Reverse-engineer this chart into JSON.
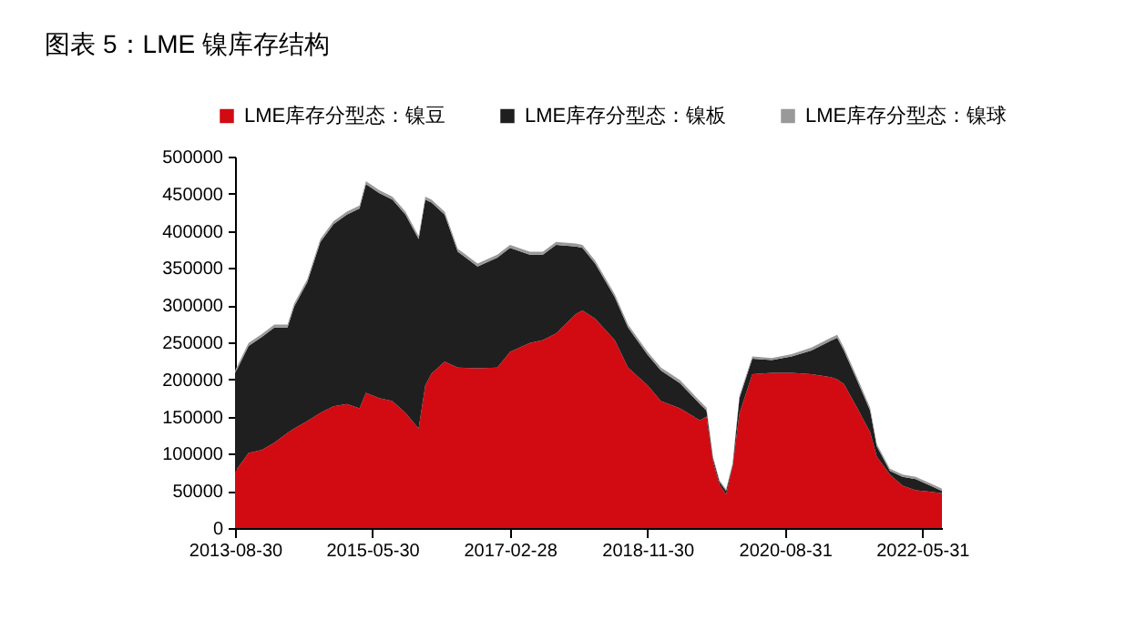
{
  "chart_data": {
    "type": "area",
    "stacked": true,
    "title": "图表 5：LME 镍库存结构",
    "x": [
      "2013-08-30",
      "2013-11-01",
      "2014-01-01",
      "2014-03-01",
      "2014-05-01",
      "2014-06-01",
      "2014-08-01",
      "2014-10-01",
      "2014-12-01",
      "2015-02-01",
      "2015-04-01",
      "2015-05-01",
      "2015-07-01",
      "2015-09-01",
      "2015-11-01",
      "2016-01-01",
      "2016-02-01",
      "2016-03-01",
      "2016-05-01",
      "2016-07-01",
      "2016-10-01",
      "2017-01-01",
      "2017-03-01",
      "2017-06-01",
      "2017-08-01",
      "2017-10-01",
      "2018-01-01",
      "2018-02-01",
      "2018-04-01",
      "2018-07-01",
      "2018-09-01",
      "2018-12-01",
      "2019-02-01",
      "2019-05-01",
      "2019-08-01",
      "2019-09-01",
      "2019-10-01",
      "2019-11-01",
      "2019-12-01",
      "2020-01-01",
      "2020-02-01",
      "2020-04-01",
      "2020-07-01",
      "2020-10-01",
      "2021-01-01",
      "2021-04-01",
      "2021-05-01",
      "2021-06-01",
      "2021-08-01",
      "2021-10-01",
      "2021-11-01",
      "2022-01-01",
      "2022-03-01",
      "2022-05-01",
      "2022-08-31"
    ],
    "series": [
      {
        "name": "LME库存分型态：镍豆",
        "color": "#d20b12",
        "values": [
          76000,
          101000,
          105000,
          115000,
          128000,
          134000,
          144000,
          155000,
          164000,
          167000,
          161000,
          182000,
          175000,
          171000,
          155000,
          134000,
          192000,
          208000,
          224000,
          216000,
          215000,
          216000,
          237000,
          249000,
          253000,
          262000,
          288000,
          293000,
          282000,
          253000,
          216000,
          192000,
          171000,
          161000,
          145000,
          150000,
          90000,
          58000,
          45000,
          84000,
          154000,
          207000,
          209000,
          209000,
          207000,
          203000,
          200000,
          194000,
          162000,
          129000,
          96000,
          72000,
          57000,
          51000,
          47000
        ]
      },
      {
        "name": "LME库存分型态：镍板",
        "color": "#1f1f1f",
        "values": [
          132000,
          144000,
          152000,
          155000,
          142000,
          164000,
          187000,
          230000,
          245000,
          255000,
          269000,
          281000,
          276000,
          271000,
          267000,
          255000,
          250000,
          230000,
          198000,
          156000,
          137000,
          148000,
          140000,
          119000,
          115000,
          119000,
          91000,
          84000,
          74000,
          58000,
          54000,
          41000,
          41000,
          34000,
          22000,
          8000,
          4000,
          4000,
          5000,
          2000,
          21000,
          21000,
          17000,
          22000,
          32000,
          49000,
          56000,
          45000,
          37000,
          29000,
          14000,
          5000,
          12000,
          15000,
          3000
        ]
      },
      {
        "name": "LME库存分型态：镍球",
        "color": "#999999",
        "values": [
          4000,
          4000,
          4000,
          4000,
          4000,
          4000,
          4000,
          4000,
          4000,
          4000,
          4000,
          4000,
          4000,
          4000,
          4000,
          4000,
          4000,
          4000,
          4000,
          4000,
          4000,
          4000,
          4000,
          4000,
          4000,
          4000,
          4000,
          4000,
          4000,
          4000,
          4000,
          4000,
          4000,
          4000,
          4000,
          4000,
          2000,
          2000,
          2000,
          2000,
          3000,
          3000,
          3000,
          3000,
          4000,
          4000,
          4000,
          4000,
          4000,
          4000,
          3000,
          3000,
          3000,
          3000,
          3000
        ]
      }
    ],
    "xlim": [
      "2013-08-30",
      "2022-08-31"
    ],
    "xticks": [
      "2013-08-30",
      "2015-05-30",
      "2017-02-28",
      "2018-11-30",
      "2020-08-31",
      "2022-05-31"
    ],
    "ylim": [
      0,
      500000
    ],
    "yticks": [
      0,
      50000,
      100000,
      150000,
      200000,
      250000,
      300000,
      350000,
      400000,
      450000,
      500000
    ],
    "legend": "top",
    "grid": false
  }
}
